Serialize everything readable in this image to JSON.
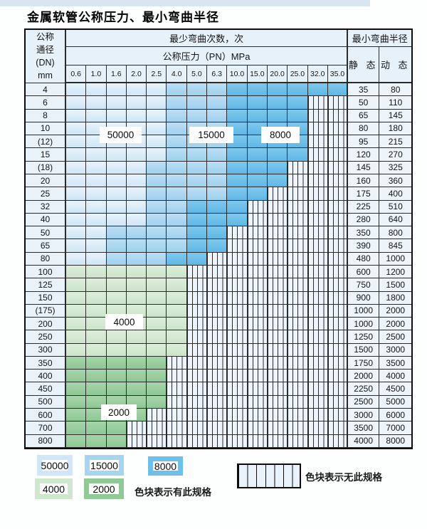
{
  "title": "金属软管公称压力、最小弯曲半径",
  "colors": {
    "blue_50000": "#cfe6f6",
    "blue_15000": "#9fd1ee",
    "blue_8000": "#5fb8e6",
    "green_4000": "#cce4ca",
    "green_2000": "#8fc795",
    "header_bg": "#e7f1f9"
  },
  "table": {
    "header": {
      "dn_lines": [
        "公称",
        "通径",
        "(DN)",
        "mm"
      ],
      "bend_times": "最少弯曲次数，次",
      "pressure": "公称压力（PN）MPa",
      "pressures": [
        "0.6",
        "1.0",
        "1.6",
        "2.0",
        "2.5",
        "4.0",
        "5.0",
        "6.3",
        "10.0",
        "15.0",
        "20.0",
        "25.0",
        "32.0",
        "35.0"
      ],
      "radius": "最小弯曲半径",
      "static": "静 态",
      "dynamic": "动 态"
    },
    "zone_labels": [
      "50000",
      "15000",
      "8000",
      "4000",
      "2000"
    ],
    "rows": [
      {
        "dn": "4",
        "zones": "pppppmmmdddddd",
        "static": "35",
        "dynamic": "80"
      },
      {
        "dn": "6",
        "zones": "pppppmmmddddxx",
        "static": "50",
        "dynamic": "110"
      },
      {
        "dn": "8",
        "zones": "pppppmmmddddxx",
        "static": "65",
        "dynamic": "145"
      },
      {
        "dn": "10",
        "zones": "pppppmmmddddxx",
        "static": "80",
        "dynamic": "180"
      },
      {
        "dn": "(12)",
        "zones": "pppppmmmddddxx",
        "static": "95",
        "dynamic": "215"
      },
      {
        "dn": "15",
        "zones": "pppppmmmddddxx",
        "static": "120",
        "dynamic": "270"
      },
      {
        "dn": "(18)",
        "zones": "ppppmmmmdddxxx",
        "static": "145",
        "dynamic": "325"
      },
      {
        "dn": "20",
        "zones": "ppppmmmmdddxxx",
        "static": "160",
        "dynamic": "360"
      },
      {
        "dn": "25",
        "zones": "ppppmmmmddxxxx",
        "static": "175",
        "dynamic": "400"
      },
      {
        "dn": "32",
        "zones": "ppppmmdddxxxxx",
        "static": "225",
        "dynamic": "510"
      },
      {
        "dn": "40",
        "zones": "ppppmmdddxxxxx",
        "static": "280",
        "dynamic": "640"
      },
      {
        "dn": "50",
        "zones": "ppmmmmddxxxxxx",
        "static": "350",
        "dynamic": "800"
      },
      {
        "dn": "65",
        "zones": "ppmmmmddxxxxxx",
        "static": "390",
        "dynamic": "845"
      },
      {
        "dn": "80",
        "zones": "ppmmmddxxxxxxx",
        "static": "480",
        "dynamic": "1000"
      },
      {
        "dn": "100",
        "zones": "ggggggxxxxxxxx",
        "static": "600",
        "dynamic": "1200"
      },
      {
        "dn": "125",
        "zones": "ggggggxxxxxxxx",
        "static": "750",
        "dynamic": "1500"
      },
      {
        "dn": "150",
        "zones": "ggggggxxxxxxxx",
        "static": "900",
        "dynamic": "1800"
      },
      {
        "dn": "(175)",
        "zones": "ggggggxxxxxxxx",
        "static": "1000",
        "dynamic": "2000"
      },
      {
        "dn": "200",
        "zones": "ggggggxxxxxxxx",
        "static": "1000",
        "dynamic": "2000"
      },
      {
        "dn": "250",
        "zones": "ggggggxxxxxxxx",
        "static": "1250",
        "dynamic": "2500"
      },
      {
        "dn": "300",
        "zones": "ggggggxxxxxxxx",
        "static": "1500",
        "dynamic": "3000"
      },
      {
        "dn": "350",
        "zones": "GGGGGxxxxxxxxx",
        "static": "1750",
        "dynamic": "3500"
      },
      {
        "dn": "400",
        "zones": "GGGGGxxxxxxxxx",
        "static": "2000",
        "dynamic": "4000"
      },
      {
        "dn": "450",
        "zones": "GGGGGxxxxxxxxx",
        "static": "2250",
        "dynamic": "4500"
      },
      {
        "dn": "500",
        "zones": "GGGGGxxxxxxxxx",
        "static": "2500",
        "dynamic": "5000"
      },
      {
        "dn": "600",
        "zones": "GGGGxxxxxxxxxx",
        "static": "3000",
        "dynamic": "6000"
      },
      {
        "dn": "700",
        "zones": "GGGxxxxxxxxxxx",
        "static": "3500",
        "dynamic": "7000"
      },
      {
        "dn": "800",
        "zones": "GGGxxxxxxxxxxx",
        "static": "4000",
        "dynamic": "8000"
      }
    ]
  },
  "legend": {
    "swatches": [
      {
        "label": "50000",
        "zone": "p"
      },
      {
        "label": "15000",
        "zone": "m"
      },
      {
        "label": "8000",
        "zone": "d"
      },
      {
        "label": "4000",
        "zone": "g"
      },
      {
        "label": "2000",
        "zone": "G"
      }
    ],
    "has_spec_note": "色块表示有此规格",
    "no_spec_note": "色块表示无此规格"
  }
}
